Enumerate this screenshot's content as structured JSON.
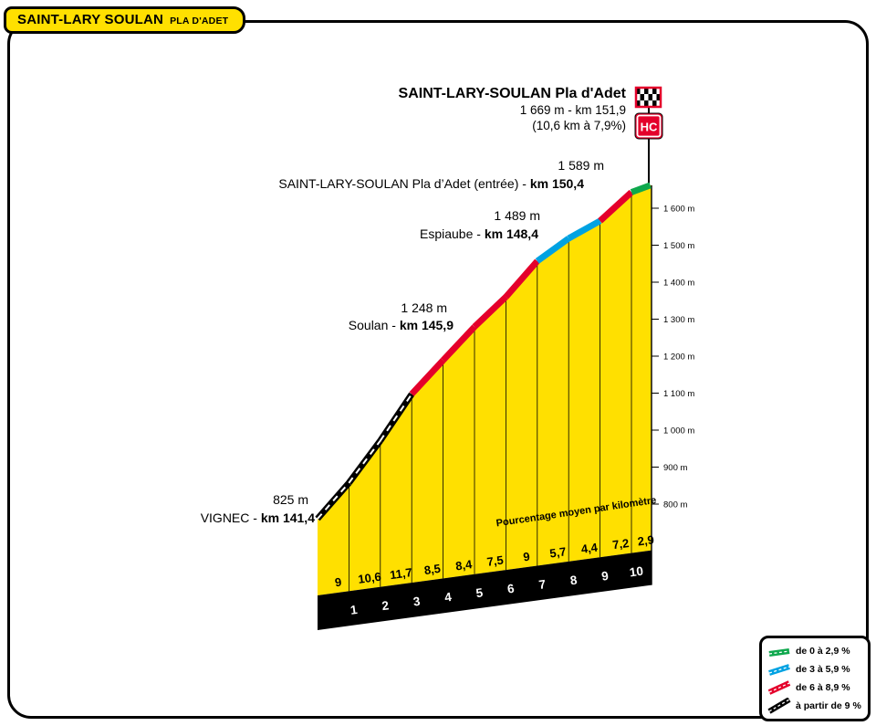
{
  "header_badge": {
    "title": "SAINT-LARY SOULAN",
    "subtitle": "PLA D'ADET"
  },
  "chart_data": {
    "type": "area",
    "title": "SAINT-LARY-SOULAN Pla d'Adet climb profile",
    "finish": {
      "name": "SAINT-LARY-SOULAN Pla d'Adet",
      "detail": "1 669 m - km 151,9",
      "stats": "(10,6 km à 7,9%)",
      "hc_label": "HC",
      "km": 151.9,
      "elevation_m": 1669
    },
    "start": {
      "km": 141.4,
      "elevation_m": 825
    },
    "length_km": 10.6,
    "avg_gradient_pct": 7.9,
    "segments": [
      {
        "length_km": 1,
        "gradient_pct": 9.0,
        "label": "9",
        "color": "black",
        "km_mark": "1"
      },
      {
        "length_km": 1,
        "gradient_pct": 10.6,
        "label": "10,6",
        "color": "black",
        "km_mark": "2"
      },
      {
        "length_km": 1,
        "gradient_pct": 11.7,
        "label": "11,7",
        "color": "black",
        "km_mark": "3"
      },
      {
        "length_km": 1,
        "gradient_pct": 8.5,
        "label": "8,5",
        "color": "red",
        "km_mark": "4"
      },
      {
        "length_km": 1,
        "gradient_pct": 8.4,
        "label": "8,4",
        "color": "red",
        "km_mark": "5"
      },
      {
        "length_km": 1,
        "gradient_pct": 7.5,
        "label": "7,5",
        "color": "red",
        "km_mark": "6"
      },
      {
        "length_km": 1,
        "gradient_pct": 9.0,
        "label": "9",
        "color": "red",
        "km_mark": "7"
      },
      {
        "length_km": 1,
        "gradient_pct": 5.7,
        "label": "5,7",
        "color": "blue",
        "km_mark": "8"
      },
      {
        "length_km": 1,
        "gradient_pct": 4.4,
        "label": "4,4",
        "color": "blue",
        "km_mark": "9"
      },
      {
        "length_km": 1,
        "gradient_pct": 7.2,
        "label": "7,2",
        "color": "red",
        "km_mark": "10"
      },
      {
        "length_km": 0.6,
        "gradient_pct": 2.9,
        "label": "2,9",
        "color": "green",
        "km_mark": ""
      }
    ],
    "waypoints": [
      {
        "elevation_label": "825 m",
        "name": "VIGNEC - ",
        "km_label": "km 141,4",
        "km": 141.4,
        "elevation_m": 825
      },
      {
        "elevation_label": "1 248 m",
        "name": "Soulan - ",
        "km_label": "km 145,9",
        "km": 145.9,
        "elevation_m": 1248
      },
      {
        "elevation_label": "1 489 m",
        "name": "Espiaube - ",
        "km_label": "km 148,4",
        "km": 148.4,
        "elevation_m": 1489
      },
      {
        "elevation_label": "1 589 m",
        "name": "SAINT-LARY-SOULAN Pla d’Adet (entrée) - ",
        "km_label": "km 150,4",
        "km": 150.4,
        "elevation_m": 1589
      }
    ],
    "y_axis_labels": [
      "1 600 m",
      "1 500 m",
      "1 400 m",
      "1 300 m",
      "1 200 m",
      "1 100 m",
      "1 000 m",
      "900 m",
      "800 m"
    ],
    "y_axis_values": [
      1600,
      1500,
      1400,
      1300,
      1200,
      1100,
      1000,
      900,
      800
    ],
    "band_label": "Pourcentage moyen par kilomètre",
    "legend": [
      {
        "label": "de 0 à 2,9 %",
        "color_key": "green"
      },
      {
        "label": "de 3 à 5,9 %",
        "color_key": "blue"
      },
      {
        "label": "de 6 à 8,9 %",
        "color_key": "red"
      },
      {
        "label": "à partir de 9 %",
        "color_key": "black"
      }
    ],
    "colors": {
      "yellow": "#ffe000",
      "green": "#0ea84d",
      "blue": "#00a2e2",
      "red": "#e4002b",
      "black": "#000000"
    }
  }
}
